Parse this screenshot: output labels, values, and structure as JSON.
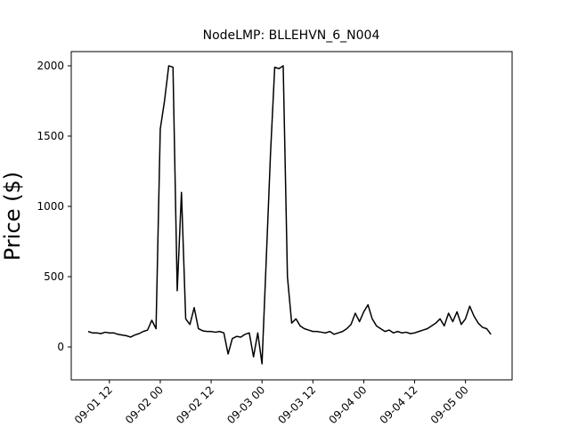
{
  "chart_data": {
    "type": "line",
    "title": "NodeLMP: BLLEHVN_6_N004",
    "y_label": "Price ($)",
    "x": [
      "09-01 07",
      "09-01 08",
      "09-01 09",
      "09-01 10",
      "09-01 11",
      "09-01 12",
      "09-01 13",
      "09-01 14",
      "09-01 15",
      "09-01 16",
      "09-01 17",
      "09-01 18",
      "09-01 19",
      "09-01 20",
      "09-01 21",
      "09-01 22",
      "09-01 23",
      "09-02 00",
      "09-02 01",
      "09-02 02",
      "09-02 03",
      "09-02 04",
      "09-02 05",
      "09-02 06",
      "09-02 07",
      "09-02 08",
      "09-02 09",
      "09-02 10",
      "09-02 11",
      "09-02 12",
      "09-02 13",
      "09-02 14",
      "09-02 15",
      "09-02 16",
      "09-02 17",
      "09-02 18",
      "09-02 19",
      "09-02 20",
      "09-02 21",
      "09-02 22",
      "09-02 23",
      "09-03 00",
      "09-03 01",
      "09-03 02",
      "09-03 03",
      "09-03 04",
      "09-03 05",
      "09-03 06",
      "09-03 07",
      "09-03 08",
      "09-03 09",
      "09-03 10",
      "09-03 11",
      "09-03 12",
      "09-03 13",
      "09-03 14",
      "09-03 15",
      "09-03 16",
      "09-03 17",
      "09-03 18",
      "09-03 19",
      "09-03 20",
      "09-03 21",
      "09-03 22",
      "09-03 23",
      "09-04 00",
      "09-04 01",
      "09-04 02",
      "09-04 03",
      "09-04 04",
      "09-04 05",
      "09-04 06",
      "09-04 07",
      "09-04 08",
      "09-04 09",
      "09-04 10",
      "09-04 11",
      "09-04 12",
      "09-04 13",
      "09-04 14",
      "09-04 15",
      "09-04 16",
      "09-04 17",
      "09-04 18",
      "09-04 19",
      "09-04 20",
      "09-04 21",
      "09-04 22",
      "09-04 23",
      "09-05 00",
      "09-05 01",
      "09-05 02",
      "09-05 03",
      "09-05 04",
      "09-05 05",
      "09-05 06"
    ],
    "series": [
      {
        "color": "#000000",
        "values": [
          110,
          100,
          100,
          95,
          105,
          100,
          100,
          90,
          85,
          80,
          70,
          85,
          95,
          110,
          120,
          190,
          130,
          1550,
          1750,
          2000,
          1990,
          400,
          1100,
          200,
          160,
          280,
          130,
          115,
          110,
          110,
          105,
          110,
          100,
          -50,
          60,
          75,
          70,
          90,
          100,
          -70,
          100,
          -120,
          620,
          1370,
          1990,
          1980,
          2000,
          500,
          170,
          200,
          150,
          130,
          120,
          110,
          110,
          105,
          100,
          110,
          90,
          100,
          110,
          130,
          160,
          240,
          180,
          250,
          300,
          200,
          150,
          130,
          110,
          120,
          100,
          110,
          100,
          105,
          95,
          100,
          110,
          120,
          130,
          150,
          170,
          200,
          150,
          240,
          180,
          250,
          160,
          200,
          290,
          220,
          170,
          140,
          130,
          90
        ]
      }
    ],
    "xlim": [
      "09-01 03",
      "09-05 11"
    ],
    "xticks": [
      "09-01 12",
      "09-02 00",
      "09-02 12",
      "09-03 00",
      "09-03 12",
      "09-04 00",
      "09-04 12",
      "09-05 00"
    ],
    "ylim": [
      -234,
      2101
    ],
    "yticks": [
      0,
      500,
      1000,
      1500,
      2000
    ]
  }
}
